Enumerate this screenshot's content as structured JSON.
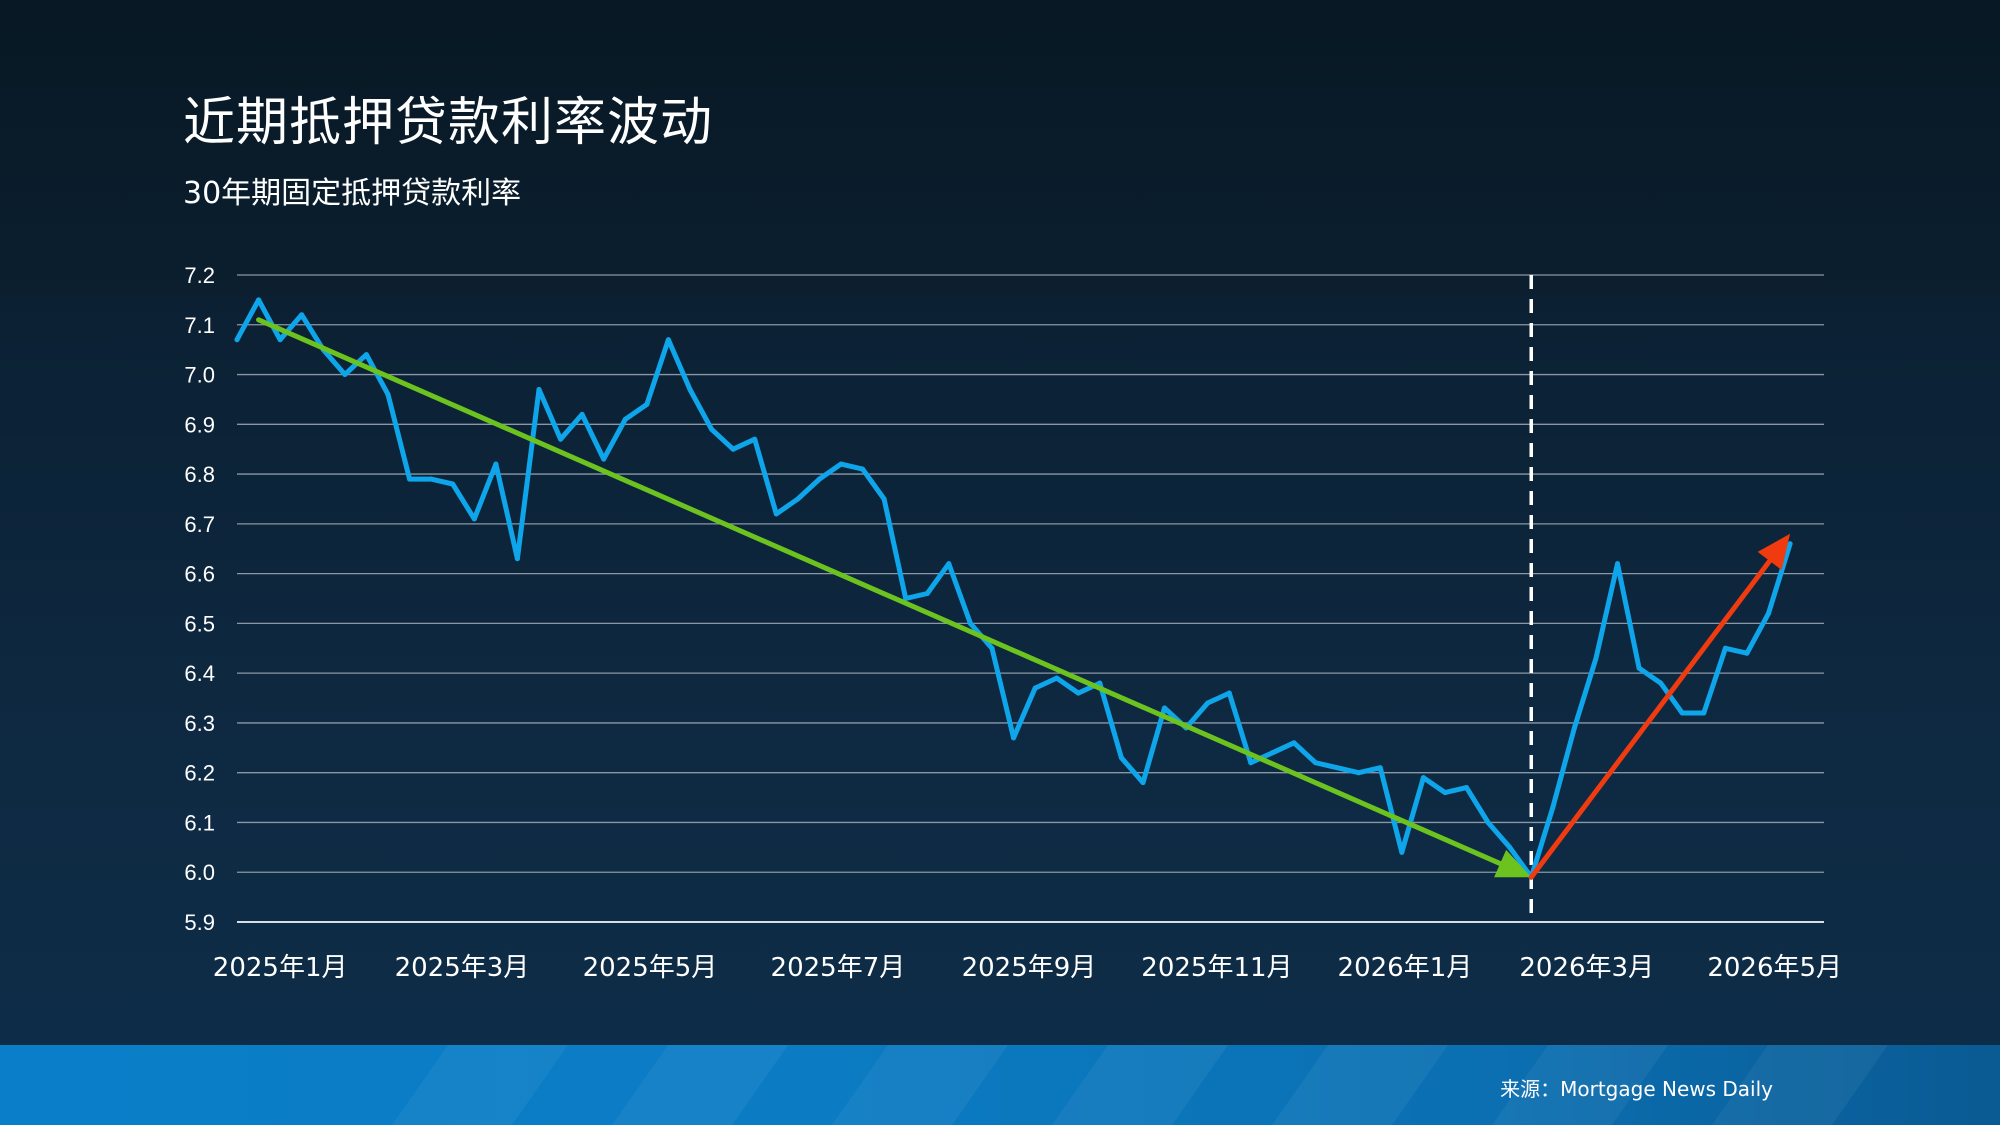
{
  "header": {
    "title": "近期抵押贷款利率波动",
    "subtitle": "30年期固定抵押贷款利率"
  },
  "footer": {
    "source": "来源：Mortgage News Daily"
  },
  "colors": {
    "series": "#0ea5ea",
    "downtrend_arrow": "#6cc21f",
    "uptrend_arrow": "#f03a0f",
    "grid": "#8a97a6",
    "background": "#0c2236",
    "footer_bar": "#0a7ec8"
  },
  "chart_data": {
    "type": "line",
    "title": "",
    "xlabel": "",
    "ylabel": "",
    "ylim": [
      5.9,
      7.2
    ],
    "y_ticks": [
      "5.9",
      "6.0",
      "6.1",
      "6.2",
      "6.3",
      "6.4",
      "6.5",
      "6.6",
      "6.7",
      "6.8",
      "6.9",
      "7.0",
      "7.1",
      "7.2"
    ],
    "x_range": [
      "2025-01-01",
      "2026-05-31"
    ],
    "x_ticks": [
      {
        "date": "2025-01-15",
        "label": "2025年1月"
      },
      {
        "date": "2025-03-15",
        "label": "2025年3月"
      },
      {
        "date": "2025-05-15",
        "label": "2025年5月"
      },
      {
        "date": "2025-07-15",
        "label": "2025年7月"
      },
      {
        "date": "2025-09-15",
        "label": "2025年9月"
      },
      {
        "date": "2025-11-15",
        "label": "2025年11月"
      },
      {
        "date": "2026-01-15",
        "label": "2026年1月"
      },
      {
        "date": "2026-03-15",
        "label": "2026年3月"
      },
      {
        "date": "2026-05-15",
        "label": "2026年5月"
      }
    ],
    "grid": true,
    "series": [
      {
        "points": [
          [
            "2025-01-01",
            7.07
          ],
          [
            "2025-01-08",
            7.15
          ],
          [
            "2025-01-15",
            7.07
          ],
          [
            "2025-01-22",
            7.12
          ],
          [
            "2025-01-29",
            7.05
          ],
          [
            "2025-02-05",
            7.0
          ],
          [
            "2025-02-12",
            7.04
          ],
          [
            "2025-02-19",
            6.96
          ],
          [
            "2025-02-26",
            6.79
          ],
          [
            "2025-03-05",
            6.79
          ],
          [
            "2025-03-12",
            6.78
          ],
          [
            "2025-03-19",
            6.71
          ],
          [
            "2025-03-26",
            6.82
          ],
          [
            "2025-04-02",
            6.63
          ],
          [
            "2025-04-09",
            6.97
          ],
          [
            "2025-04-16",
            6.87
          ],
          [
            "2025-04-23",
            6.92
          ],
          [
            "2025-04-30",
            6.83
          ],
          [
            "2025-05-07",
            6.91
          ],
          [
            "2025-05-14",
            6.94
          ],
          [
            "2025-05-21",
            7.07
          ],
          [
            "2025-05-28",
            6.97
          ],
          [
            "2025-06-04",
            6.89
          ],
          [
            "2025-06-11",
            6.85
          ],
          [
            "2025-06-18",
            6.87
          ],
          [
            "2025-06-25",
            6.72
          ],
          [
            "2025-07-02",
            6.75
          ],
          [
            "2025-07-09",
            6.79
          ],
          [
            "2025-07-16",
            6.82
          ],
          [
            "2025-07-23",
            6.81
          ],
          [
            "2025-07-30",
            6.75
          ],
          [
            "2025-08-06",
            6.55
          ],
          [
            "2025-08-13",
            6.56
          ],
          [
            "2025-08-20",
            6.62
          ],
          [
            "2025-08-27",
            6.5
          ],
          [
            "2025-09-03",
            6.45
          ],
          [
            "2025-09-10",
            6.27
          ],
          [
            "2025-09-17",
            6.37
          ],
          [
            "2025-09-24",
            6.39
          ],
          [
            "2025-10-01",
            6.36
          ],
          [
            "2025-10-08",
            6.38
          ],
          [
            "2025-10-15",
            6.23
          ],
          [
            "2025-10-22",
            6.18
          ],
          [
            "2025-10-29",
            6.33
          ],
          [
            "2025-11-05",
            6.29
          ],
          [
            "2025-11-12",
            6.34
          ],
          [
            "2025-11-19",
            6.36
          ],
          [
            "2025-11-26",
            6.22
          ],
          [
            "2025-12-03",
            6.24
          ],
          [
            "2025-12-10",
            6.26
          ],
          [
            "2025-12-17",
            6.22
          ],
          [
            "2025-12-24",
            6.21
          ],
          [
            "2025-12-31",
            6.2
          ],
          [
            "2026-01-07",
            6.21
          ],
          [
            "2026-01-14",
            6.04
          ],
          [
            "2026-01-21",
            6.19
          ],
          [
            "2026-01-28",
            6.16
          ],
          [
            "2026-02-04",
            6.17
          ],
          [
            "2026-02-11",
            6.1
          ],
          [
            "2026-02-18",
            6.05
          ],
          [
            "2026-02-25",
            5.99
          ],
          [
            "2026-03-04",
            6.13
          ],
          [
            "2026-03-11",
            6.29
          ],
          [
            "2026-03-18",
            6.43
          ],
          [
            "2026-03-25",
            6.62
          ],
          [
            "2026-04-01",
            6.41
          ],
          [
            "2026-04-08",
            6.38
          ],
          [
            "2026-04-15",
            6.32
          ],
          [
            "2026-04-22",
            6.32
          ],
          [
            "2026-04-29",
            6.45
          ],
          [
            "2026-05-06",
            6.44
          ],
          [
            "2026-05-13",
            6.52
          ],
          [
            "2026-05-20",
            6.66
          ]
        ]
      }
    ],
    "annotations": {
      "downtrend_arrow": {
        "from": [
          "2025-01-08",
          7.11
        ],
        "to": [
          "2026-02-25",
          5.99
        ]
      },
      "uptrend_arrow": {
        "from": [
          "2026-02-25",
          5.99
        ],
        "to": [
          "2026-05-20",
          6.68
        ]
      },
      "vertical_marker": {
        "date": "2026-02-25",
        "style": "dashed"
      }
    }
  }
}
